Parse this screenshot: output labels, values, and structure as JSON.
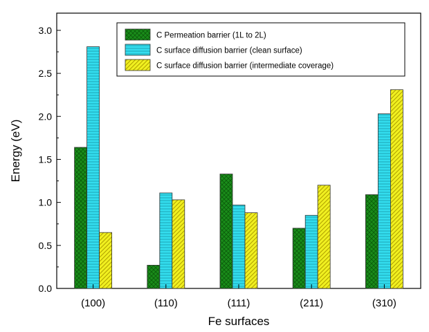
{
  "chart_data": {
    "type": "bar",
    "xlabel": "Fe surfaces",
    "ylabel": "Energy (eV)",
    "ylim": [
      0,
      3.2
    ],
    "yticks": [
      0.0,
      0.5,
      1.0,
      1.5,
      2.0,
      2.5,
      3.0
    ],
    "ytick_labels": [
      "0.0",
      "0.5",
      "1.0",
      "1.5",
      "2.0",
      "2.5",
      "3.0"
    ],
    "categories": [
      "(100)",
      "(110)",
      "(111)",
      "(211)",
      "(310)"
    ],
    "legend_position": "top-right",
    "grid": false,
    "series": [
      {
        "name": "C  Permeation barrier (1L to 2L)",
        "values": [
          1.64,
          0.27,
          1.33,
          0.7,
          1.09
        ],
        "color": "#1a8c1a",
        "pattern": "crosshatch"
      },
      {
        "name": "C  surface diffusion barrier (clean surface)",
        "values": [
          2.81,
          1.11,
          0.97,
          0.85,
          2.03
        ],
        "color": "#33ddee",
        "pattern": "horizontal-lines"
      },
      {
        "name": "C  surface diffusion barrier (intermediate coverage)",
        "values": [
          0.65,
          1.03,
          0.88,
          1.2,
          2.31
        ],
        "color": "#f0f020",
        "pattern": "diagonal-lines"
      }
    ]
  }
}
